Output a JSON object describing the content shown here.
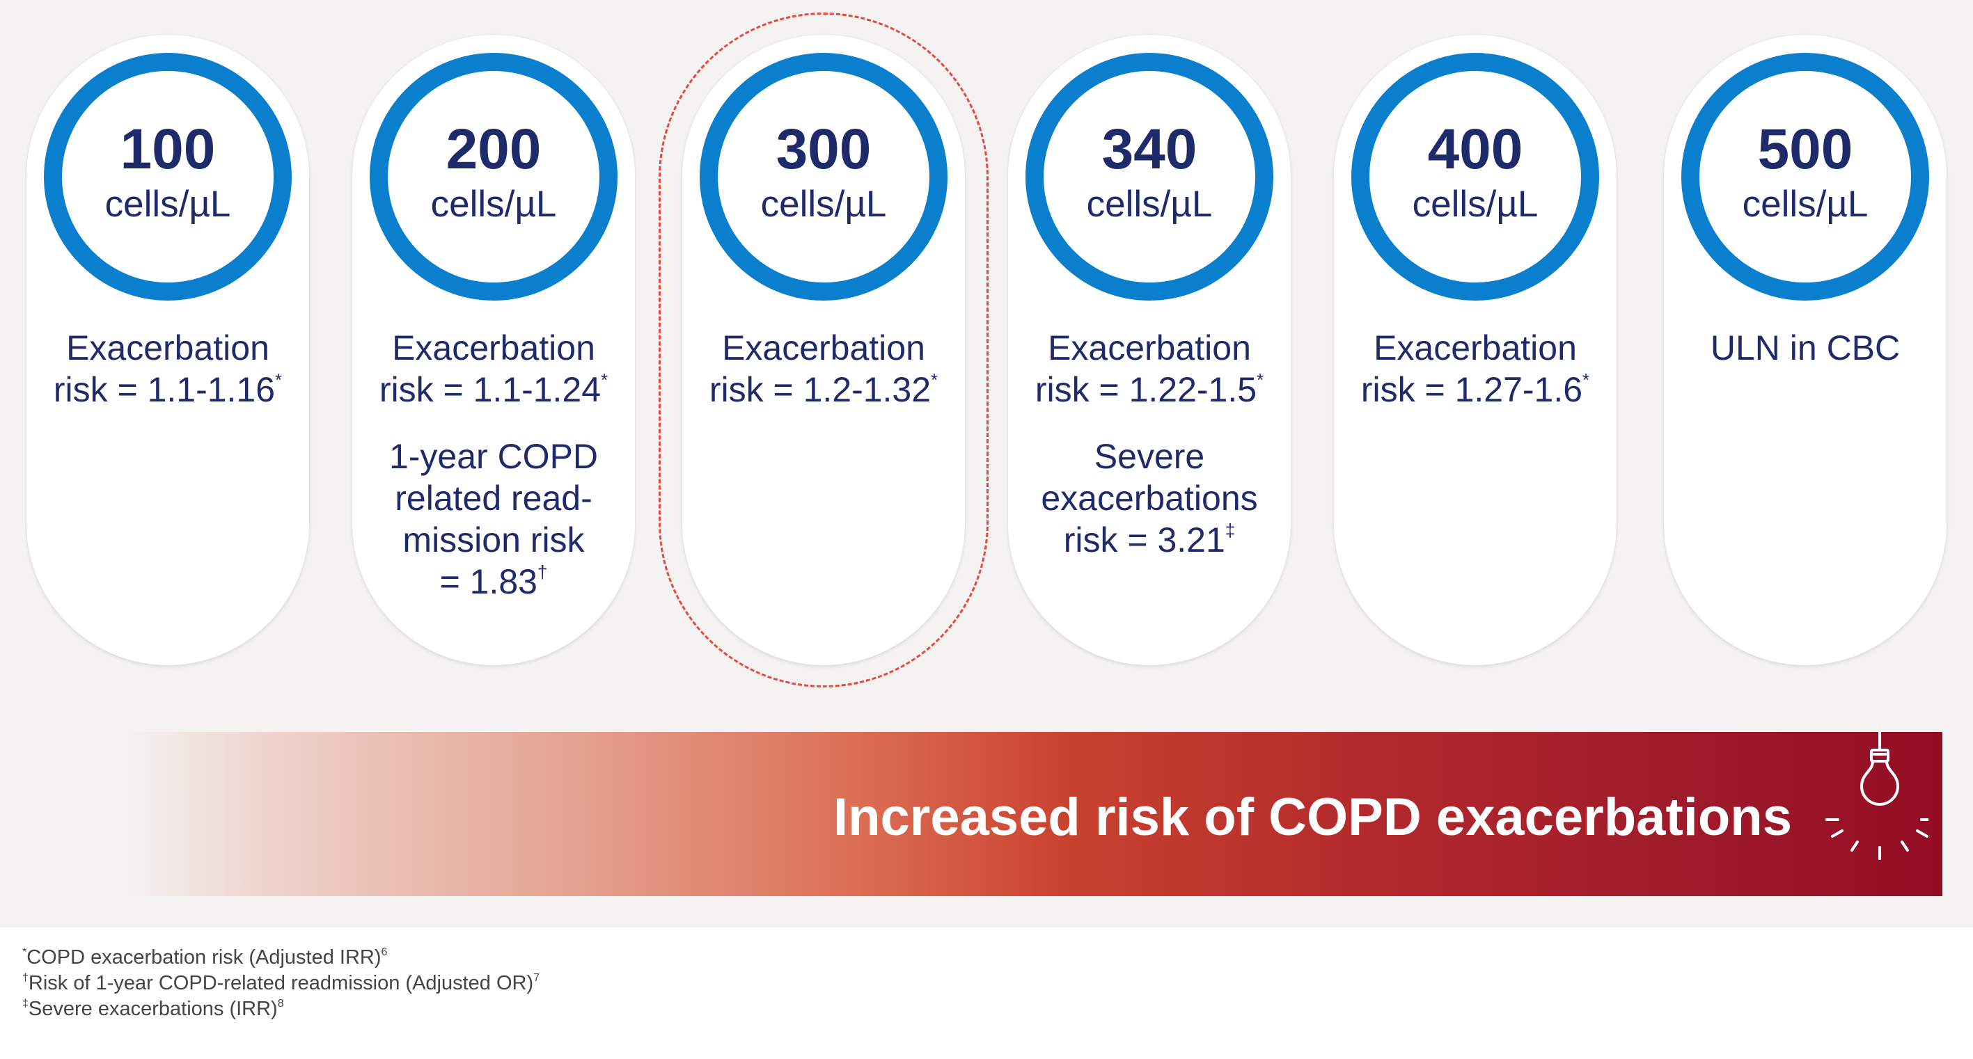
{
  "cards": [
    {
      "value": "100",
      "unit": "cells/µL",
      "lines": [
        [
          "Exacerbation",
          "risk = 1.1-1.16",
          "*"
        ]
      ]
    },
    {
      "value": "200",
      "unit": "cells/µL",
      "lines": [
        [
          "Exacerbation",
          "risk = 1.1-1.24",
          "*"
        ],
        [
          "1-year COPD",
          "related read-",
          "mission risk",
          "= 1.83",
          "†"
        ]
      ]
    },
    {
      "value": "300",
      "unit": "cells/µL",
      "lines": [
        [
          "Exacerbation",
          "risk = 1.2-1.32",
          "*"
        ]
      ]
    },
    {
      "value": "340",
      "unit": "cells/µL",
      "lines": [
        [
          "Exacerbation",
          "risk = 1.22-1.5",
          "*"
        ],
        [
          "Severe",
          "exacerbations",
          "risk = 3.21",
          "‡"
        ]
      ]
    },
    {
      "value": "400",
      "unit": "cells/µL",
      "lines": [
        [
          "Exacerbation",
          "risk = 1.27-1.6",
          "*"
        ]
      ]
    },
    {
      "value": "500",
      "unit": "cells/µL",
      "lines": [
        [
          "ULN in CBC"
        ]
      ]
    }
  ],
  "highlighted_card": "300",
  "banner": {
    "title": "Increased risk of COPD exacerbations",
    "icon": "lightbulb-icon",
    "gradient_colors": [
      "#f4f3f2",
      "#e4a18f",
      "#c9412f",
      "#920d24"
    ]
  },
  "footnotes": [
    {
      "symbol": "*",
      "text": "COPD exacerbation risk (Adjusted IRR)",
      "ref": "6"
    },
    {
      "symbol": "†",
      "text": "Risk of 1-year COPD-related readmission (Adjusted OR)",
      "ref": "7"
    },
    {
      "symbol": "‡",
      "text": "Severe exacerbations (IRR)",
      "ref": "8"
    }
  ],
  "colors": {
    "ring": "#0a7fcd",
    "text": "#1f2a6b",
    "highlight_dash": "#e8493e",
    "background": "#f4f3f2"
  }
}
